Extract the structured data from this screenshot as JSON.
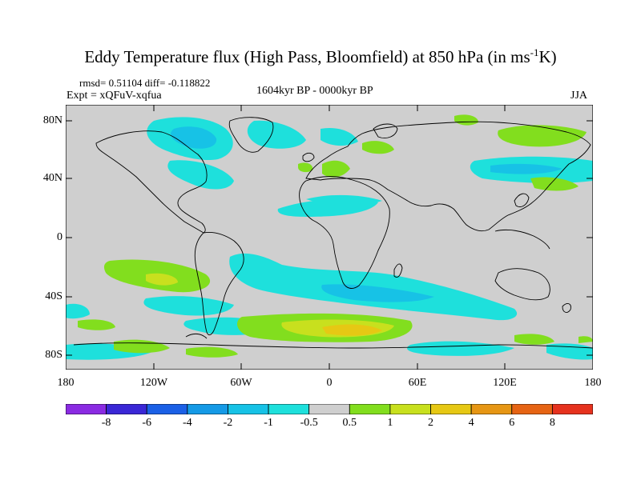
{
  "title": {
    "main": "Eddy Temperature flux (High Pass, Bloomfield) at 850 hPa (in ms",
    "sup": "-1",
    "end": "K)"
  },
  "stats": "rmsd= 0.51104 diff= -0.118822",
  "expt": "Expt = xQFuV-xqfua",
  "period": "1604kyr BP - 0000kyr BP",
  "season": "JJA",
  "lat_labels": [
    "80N",
    "40N",
    "0",
    "40S",
    "80S"
  ],
  "lon_labels": [
    "180",
    "120W",
    "60W",
    "0",
    "60E",
    "120E",
    "180"
  ],
  "colorbar": {
    "labels": [
      "-8",
      "-6",
      "-4",
      "-2",
      "-1",
      "-0.5",
      "0.5",
      "1",
      "2",
      "4",
      "6",
      "8"
    ],
    "colors": [
      "#8a2be2",
      "#3a27d6",
      "#1b60e6",
      "#159ae6",
      "#17c2e6",
      "#1ee0dc",
      "#cfcfcf",
      "#82de1e",
      "#c8e01e",
      "#e6c814",
      "#e69614",
      "#e66414",
      "#e6321e"
    ]
  }
}
